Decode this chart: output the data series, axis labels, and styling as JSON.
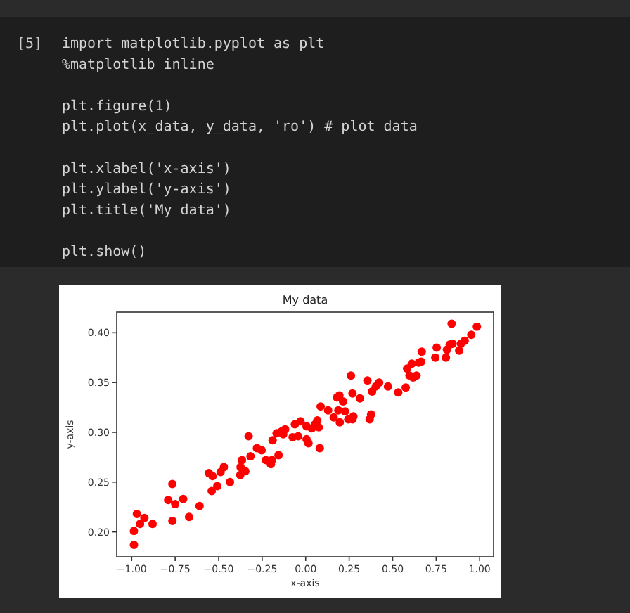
{
  "chart_data": {
    "type": "scatter",
    "title": "My data",
    "xlabel": "x-axis",
    "ylabel": "y-axis",
    "annotations": [
      "[5]",
      "import matplotlib.pyplot as plt\n%matplotlib inline\n\nplt.figure(1)\nplt.plot(x_data, y_data, 'ro') # plot data\n\nplt.xlabel('x-axis')\nplt.ylabel('y-axis')\nplt.title('My data')\n\nplt.show()"
    ],
    "xlim": [
      -1.086,
      1.08
    ],
    "ylim": [
      0.175,
      0.4207
    ],
    "xticks": [
      {
        "value": -1,
        "label": "−1.00"
      },
      {
        "value": -0.75,
        "label": "−0.75"
      },
      {
        "value": -0.5,
        "label": "−0.50"
      },
      {
        "value": -0.25,
        "label": "−0.25"
      },
      {
        "value": 0,
        "label": "0.00"
      },
      {
        "value": 0.25,
        "label": "0.25"
      },
      {
        "value": 0.5,
        "label": "0.50"
      },
      {
        "value": 0.75,
        "label": "0.75"
      },
      {
        "value": 1,
        "label": "1.00"
      }
    ],
    "yticks": [
      {
        "value": 0.2,
        "label": "0.20"
      },
      {
        "value": 0.25,
        "label": "0.25"
      },
      {
        "value": 0.3,
        "label": "0.30"
      },
      {
        "value": 0.35,
        "label": "0.35"
      },
      {
        "value": 0.4,
        "label": "0.40"
      }
    ],
    "marker": "circle",
    "grid": false,
    "series": [
      {
        "color": "#ff0000",
        "x": [
          -0.987,
          -0.987,
          -0.97,
          -0.952,
          -0.927,
          -0.88,
          -0.79,
          -0.766,
          -0.766,
          -0.75,
          -0.704,
          -0.67,
          -0.61,
          -0.556,
          -0.535,
          -0.54,
          -0.508,
          -0.489,
          -0.47,
          -0.435,
          -0.376,
          -0.374,
          -0.366,
          -0.347,
          -0.328,
          -0.317,
          -0.28,
          -0.253,
          -0.228,
          -0.2,
          -0.194,
          -0.19,
          -0.156,
          -0.167,
          -0.137,
          -0.129,
          -0.118,
          -0.075,
          -0.062,
          -0.043,
          -0.03,
          0.005,
          0.005,
          0.016,
          0.035,
          0.054,
          0.067,
          0.075,
          0.081,
          0.086,
          0.129,
          0.161,
          0.18,
          0.188,
          0.194,
          0.196,
          0.215,
          0.226,
          0.245,
          0.26,
          0.269,
          0.269,
          0.274,
          0.312,
          0.355,
          0.368,
          0.376,
          0.382,
          0.403,
          0.422,
          0.473,
          0.532,
          0.575,
          0.583,
          0.597,
          0.61,
          0.618,
          0.637,
          0.65,
          0.664,
          0.667,
          0.745,
          0.753,
          0.806,
          0.812,
          0.828,
          0.839,
          0.844,
          0.882,
          0.892,
          0.914,
          0.952,
          0.984
        ],
        "values": [
          0.187,
          0.201,
          0.218,
          0.208,
          0.214,
          0.208,
          0.232,
          0.248,
          0.211,
          0.228,
          0.233,
          0.215,
          0.226,
          0.259,
          0.256,
          0.241,
          0.246,
          0.26,
          0.265,
          0.25,
          0.257,
          0.265,
          0.272,
          0.261,
          0.296,
          0.276,
          0.284,
          0.282,
          0.272,
          0.268,
          0.272,
          0.292,
          0.277,
          0.299,
          0.301,
          0.298,
          0.303,
          0.295,
          0.308,
          0.296,
          0.311,
          0.306,
          0.293,
          0.289,
          0.304,
          0.308,
          0.312,
          0.305,
          0.284,
          0.326,
          0.322,
          0.315,
          0.335,
          0.322,
          0.337,
          0.31,
          0.331,
          0.321,
          0.313,
          0.357,
          0.339,
          0.313,
          0.316,
          0.334,
          0.352,
          0.313,
          0.318,
          0.341,
          0.346,
          0.35,
          0.346,
          0.34,
          0.345,
          0.364,
          0.357,
          0.369,
          0.355,
          0.357,
          0.37,
          0.371,
          0.381,
          0.375,
          0.385,
          0.375,
          0.383,
          0.388,
          0.409,
          0.389,
          0.382,
          0.389,
          0.392,
          0.398,
          0.406
        ]
      }
    ]
  }
}
